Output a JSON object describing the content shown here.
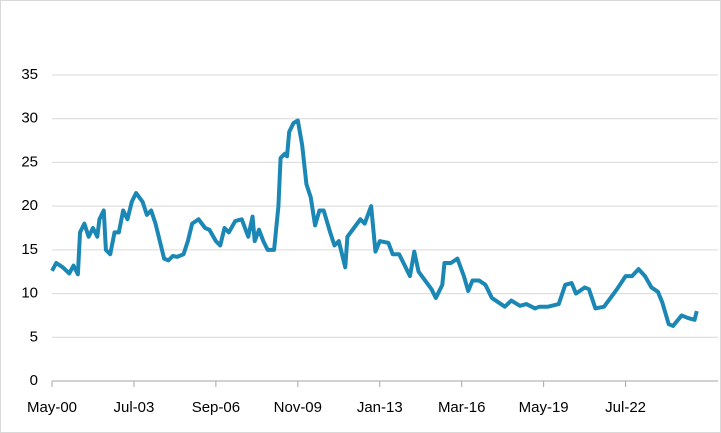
{
  "chart_data": {
    "type": "line",
    "x": [
      "2000-05",
      "2000-07",
      "2000-10",
      "2001-01",
      "2001-03",
      "2001-05",
      "2001-06",
      "2001-08",
      "2001-10",
      "2001-12",
      "2002-02",
      "2002-03",
      "2002-05",
      "2002-06",
      "2002-08",
      "2002-10",
      "2002-12",
      "2003-02",
      "2003-04",
      "2003-06",
      "2003-08",
      "2003-11",
      "2004-01",
      "2004-03",
      "2004-05",
      "2004-07",
      "2004-09",
      "2004-11",
      "2005-01",
      "2005-03",
      "2005-06",
      "2005-08",
      "2005-10",
      "2006-01",
      "2006-04",
      "2006-06",
      "2006-09",
      "2006-11",
      "2007-01",
      "2007-03",
      "2007-06",
      "2007-09",
      "2007-12",
      "2008-02",
      "2008-03",
      "2008-05",
      "2008-07",
      "2008-09",
      "2008-12",
      "2009-02",
      "2009-03",
      "2009-05",
      "2009-06",
      "2009-07",
      "2009-09",
      "2009-11",
      "2010-01",
      "2010-03",
      "2010-05",
      "2010-07",
      "2010-09",
      "2010-11",
      "2011-02",
      "2011-04",
      "2011-06",
      "2011-09",
      "2011-10",
      "2012-01",
      "2012-04",
      "2012-06",
      "2012-09",
      "2012-11",
      "2013-01",
      "2013-05",
      "2013-07",
      "2013-10",
      "2013-12",
      "2014-03",
      "2014-05",
      "2014-07",
      "2014-10",
      "2015-01",
      "2015-03",
      "2015-06",
      "2015-07",
      "2015-10",
      "2016-01",
      "2016-04",
      "2016-06",
      "2016-08",
      "2016-11",
      "2017-02",
      "2017-05",
      "2017-08",
      "2017-11",
      "2018-02",
      "2018-06",
      "2018-09",
      "2019-01",
      "2019-03",
      "2019-07",
      "2019-12",
      "2020-03",
      "2020-06",
      "2020-08",
      "2020-12",
      "2021-02",
      "2021-05",
      "2021-09",
      "2021-12",
      "2022-03",
      "2022-07",
      "2022-10",
      "2023-01",
      "2023-04",
      "2023-07",
      "2023-10",
      "2023-12",
      "2024-03",
      "2024-05",
      "2024-09",
      "2024-12",
      "2025-03",
      "2025-04"
    ],
    "series": [
      {
        "color": "#1b87b5",
        "values": [
          12.6,
          13.5,
          13.0,
          12.3,
          13.2,
          12.2,
          17.0,
          18.0,
          16.5,
          17.5,
          16.5,
          18.5,
          19.5,
          15.0,
          14.5,
          17.0,
          17.0,
          19.5,
          18.5,
          20.5,
          21.5,
          20.5,
          19.0,
          19.5,
          18.0,
          16.0,
          14.0,
          13.8,
          14.3,
          14.2,
          14.5,
          16.0,
          18.0,
          18.5,
          17.5,
          17.3,
          16.0,
          15.5,
          17.5,
          17.0,
          18.3,
          18.5,
          16.5,
          18.8,
          16.0,
          17.3,
          16.0,
          15.0,
          15.0,
          20.0,
          25.5,
          26.0,
          25.7,
          28.5,
          29.5,
          29.8,
          27.0,
          22.5,
          21.0,
          17.8,
          19.5,
          19.5,
          17.0,
          15.5,
          16.0,
          13.0,
          16.5,
          17.5,
          18.5,
          18.0,
          20.0,
          14.8,
          16.0,
          15.8,
          14.5,
          14.5,
          13.5,
          12.0,
          14.8,
          12.5,
          11.5,
          10.5,
          9.5,
          11.0,
          13.5,
          13.5,
          14.0,
          12.0,
          10.3,
          11.5,
          11.5,
          11.0,
          9.5,
          9.0,
          8.5,
          9.2,
          8.6,
          8.8,
          8.3,
          8.5,
          8.5,
          8.8,
          11.0,
          11.2,
          10.0,
          10.7,
          10.5,
          8.3,
          8.5,
          9.5,
          10.5,
          12.0,
          12.0,
          12.8,
          12.0,
          10.7,
          10.2,
          9.0,
          6.5,
          6.3,
          7.5,
          7.2,
          7.0,
          8.0
        ]
      }
    ],
    "xlim": [
      "2000-05",
      "2025-12"
    ],
    "xticks": [
      {
        "value": "2000-05",
        "label": "May-00"
      },
      {
        "value": "2003-07",
        "label": "Jul-03"
      },
      {
        "value": "2006-09",
        "label": "Sep-06"
      },
      {
        "value": "2009-11",
        "label": "Nov-09"
      },
      {
        "value": "2013-01",
        "label": "Jan-13"
      },
      {
        "value": "2016-03",
        "label": "Mar-16"
      },
      {
        "value": "2019-05",
        "label": "May-19"
      },
      {
        "value": "2022-07",
        "label": "Jul-22"
      }
    ],
    "ylim": [
      0,
      35
    ],
    "yticks": [
      0,
      5,
      10,
      15,
      20,
      25,
      30,
      35
    ],
    "grid": true
  }
}
